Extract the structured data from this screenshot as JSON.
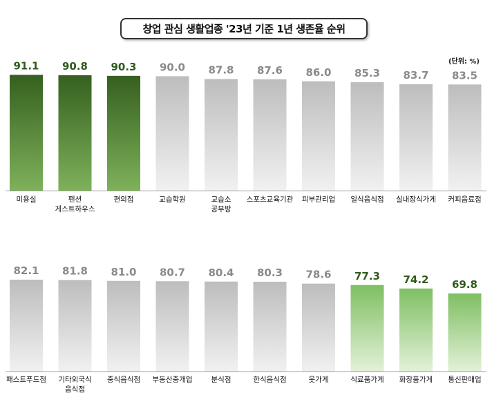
{
  "title": "창업 관심 생활업종 '23년 기준 1년 생존율 순위",
  "unit_label": "(단위: %)",
  "colors": {
    "highlight_dark": "#3b6b23",
    "highlight_light": "#8cc574",
    "neutral": "#c4c4c4",
    "value_dark": "#2f5a1c",
    "value_neutral": "#8a8a8a"
  },
  "chart_data": [
    {
      "type": "bar",
      "title": "",
      "xlabel": "",
      "ylabel": "",
      "categories": [
        "미용실",
        "펜션\n게스트하우스",
        "편의점",
        "교습학원",
        "교습소\n공부방",
        "스포츠교육기관",
        "피부관리업",
        "일식음식점",
        "실내장식가게",
        "커피음료점"
      ],
      "values": [
        91.1,
        90.8,
        90.3,
        90.0,
        87.8,
        87.6,
        86.0,
        85.3,
        83.7,
        83.5
      ],
      "value_labels": [
        "91.1",
        "90.8",
        "90.3",
        "90.0",
        "87.8",
        "87.6",
        "86.0",
        "85.3",
        "83.7",
        "83.5"
      ],
      "highlight": [
        "dark",
        "dark",
        "dark",
        "none",
        "none",
        "none",
        "none",
        "none",
        "none",
        "none"
      ]
    },
    {
      "type": "bar",
      "title": "",
      "xlabel": "",
      "ylabel": "",
      "categories": [
        "패스트푸드점",
        "기타외국식\n음식점",
        "중식음식점",
        "부동산중개업",
        "분식점",
        "한식음식점",
        "옷가게",
        "식료품가게",
        "화장품가게",
        "통신판매업"
      ],
      "values": [
        82.1,
        81.8,
        81.0,
        80.7,
        80.4,
        80.3,
        78.6,
        77.3,
        74.2,
        69.8
      ],
      "value_labels": [
        "82.1",
        "81.8",
        "81.0",
        "80.7",
        "80.4",
        "80.3",
        "78.6",
        "77.3",
        "74.2",
        "69.8"
      ],
      "highlight": [
        "none",
        "none",
        "none",
        "none",
        "none",
        "none",
        "none",
        "light",
        "light",
        "light"
      ]
    }
  ]
}
